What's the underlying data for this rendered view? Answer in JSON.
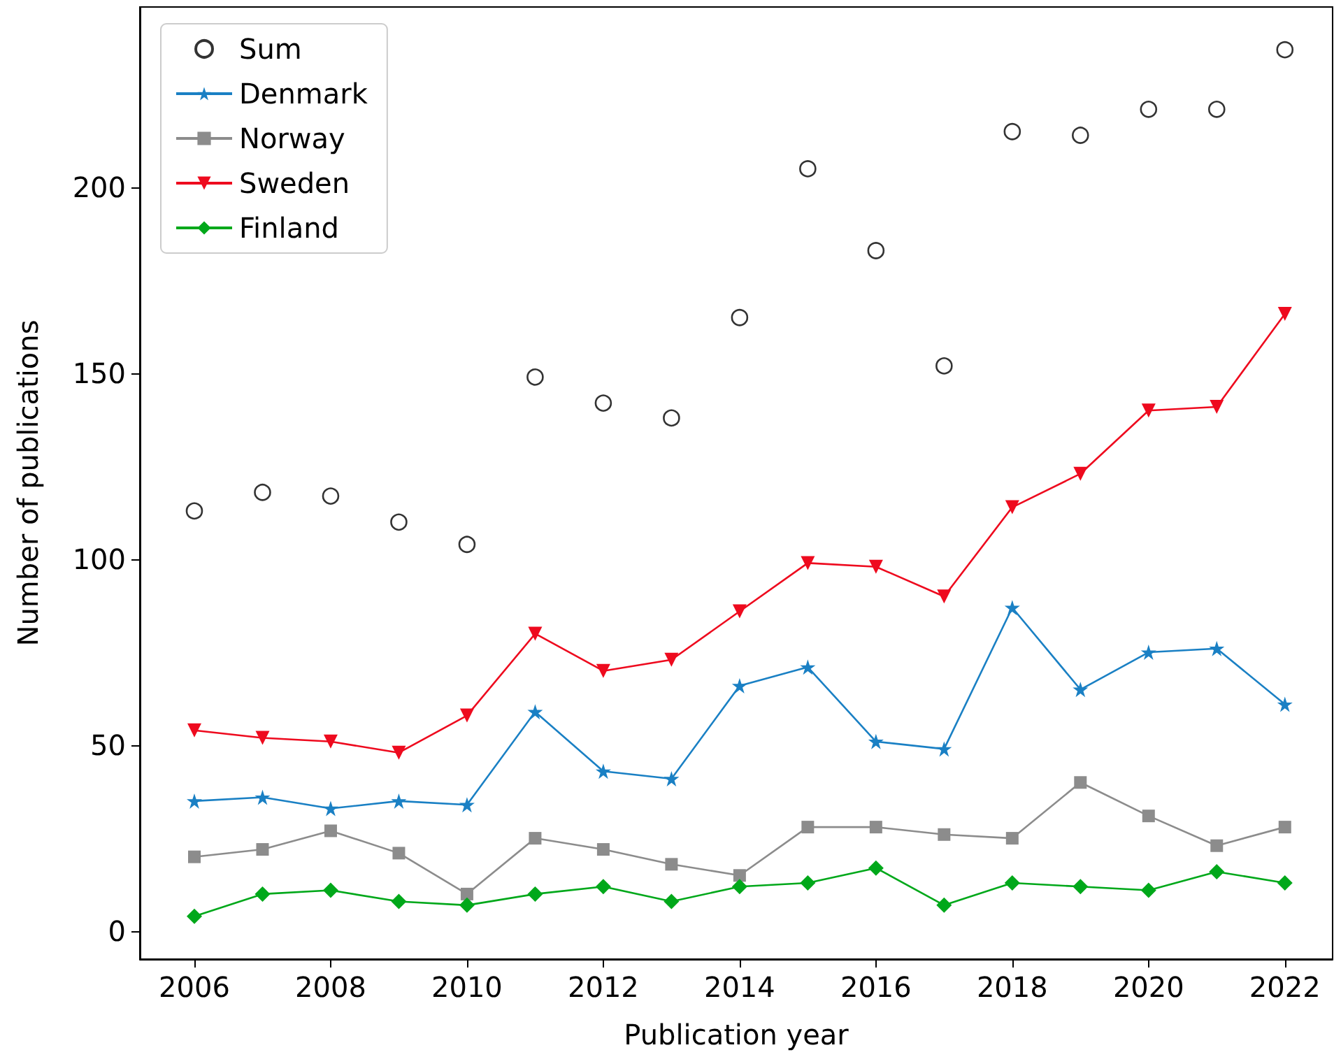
{
  "chart_data": {
    "type": "line",
    "xlabel": "Publication year",
    "ylabel": "Number of publications",
    "x": [
      2006,
      2007,
      2008,
      2009,
      2010,
      2011,
      2012,
      2013,
      2014,
      2015,
      2016,
      2017,
      2018,
      2019,
      2020,
      2021,
      2022
    ],
    "series": [
      {
        "name": "Sum",
        "type": "scatter",
        "marker": "circle",
        "color": "#000000",
        "values": [
          113,
          118,
          117,
          110,
          104,
          149,
          142,
          138,
          165,
          205,
          183,
          152,
          215,
          214,
          221,
          221,
          237
        ]
      },
      {
        "name": "Denmark",
        "marker": "star",
        "color": "#1a80c4",
        "values": [
          35,
          36,
          33,
          35,
          34,
          59,
          43,
          41,
          66,
          71,
          51,
          49,
          87,
          65,
          75,
          76,
          61
        ]
      },
      {
        "name": "Norway",
        "marker": "square",
        "color": "#8c8c8c",
        "values": [
          20,
          22,
          27,
          21,
          10,
          25,
          22,
          18,
          15,
          28,
          28,
          26,
          25,
          40,
          31,
          23,
          28
        ]
      },
      {
        "name": "Sweden",
        "marker": "triangle",
        "color": "#ee0a1e",
        "values": [
          54,
          52,
          51,
          48,
          58,
          80,
          70,
          73,
          86,
          99,
          98,
          90,
          114,
          123,
          140,
          141,
          166
        ]
      },
      {
        "name": "Finland",
        "marker": "diamond",
        "color": "#00a81a",
        "values": [
          4,
          10,
          11,
          8,
          7,
          10,
          12,
          8,
          12,
          13,
          17,
          7,
          13,
          12,
          11,
          16,
          13
        ]
      }
    ],
    "xlim": [
      2005.2,
      2022.7
    ],
    "xticks": [
      2006,
      2008,
      2010,
      2012,
      2014,
      2016,
      2018,
      2020,
      2022
    ],
    "ylim": [
      -7.5,
      248.5
    ],
    "yticks": [
      0,
      50,
      100,
      150,
      200
    ],
    "grid": false,
    "legend": "top left",
    "line_style": "solid"
  }
}
